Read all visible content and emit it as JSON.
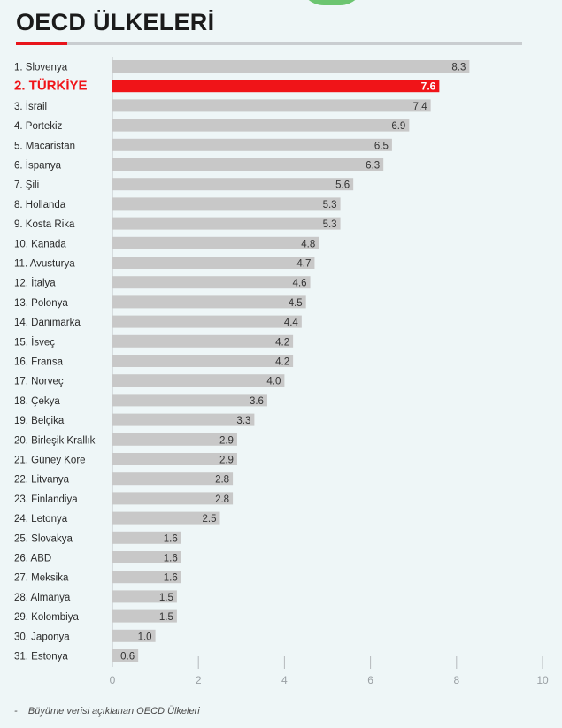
{
  "header": {
    "title": "OECD ÜLKELERİ"
  },
  "footnote": {
    "dash": "-",
    "text": "Büyüme verisi açıklanan OECD Ülkeleri"
  },
  "colors": {
    "bar": "#c8c8c8",
    "highlight": "#f01418",
    "background": "#eef6f7",
    "title_accent": "#e8141b"
  },
  "chart_data": {
    "type": "bar",
    "orientation": "horizontal",
    "title": "OECD ÜLKELERİ",
    "categories": [
      "1. Slovenya",
      "2. TÜRKİYE",
      "3. İsrail",
      "4. Portekiz",
      "5. Macaristan",
      "6. İspanya",
      "7. Şili",
      "8. Hollanda",
      "9. Kosta Rika",
      "10. Kanada",
      "11. Avusturya",
      "12. İtalya",
      "13. Polonya",
      "14. Danimarka",
      "15. İsveç",
      "16. Fransa",
      "17. Norveç",
      "18. Çekya",
      "19. Belçika",
      "20. Birleşik Krallık",
      "21. Güney Kore",
      "22. Litvanya",
      "23. Finlandiya",
      "24. Letonya",
      "25. Slovakya",
      "26. ABD",
      "27. Meksika",
      "28. Almanya",
      "29. Kolombiya",
      "30. Japonya",
      "31. Estonya"
    ],
    "values": [
      8.3,
      7.6,
      7.4,
      6.9,
      6.5,
      6.3,
      5.6,
      5.3,
      5.3,
      4.8,
      4.7,
      4.6,
      4.5,
      4.4,
      4.2,
      4.2,
      4.0,
      3.6,
      3.3,
      2.9,
      2.9,
      2.8,
      2.8,
      2.5,
      1.6,
      1.6,
      1.6,
      1.5,
      1.5,
      1.0,
      0.6
    ],
    "value_labels": [
      "8.3",
      "7.6",
      "7.4",
      "6.9",
      "6.5",
      "6.3",
      "5.6",
      "5.3",
      "5.3",
      "4.8",
      "4.7",
      "4.6",
      "4.5",
      "4.4",
      "4.2",
      "4.2",
      "4.0",
      "3.6",
      "3.3",
      "2.9",
      "2.9",
      "2.8",
      "2.8",
      "2.5",
      "1.6",
      "1.6",
      "1.6",
      "1.5",
      "1.5",
      "1.0",
      "0.6"
    ],
    "highlight_index": 1,
    "xlim": [
      0,
      10
    ],
    "xticks": [
      0,
      2,
      4,
      6,
      8,
      10
    ],
    "xtick_labels": [
      "0",
      "2",
      "4",
      "6",
      "8",
      "10"
    ],
    "xlabel": "",
    "ylabel": "",
    "grid": false,
    "legend": "none"
  }
}
